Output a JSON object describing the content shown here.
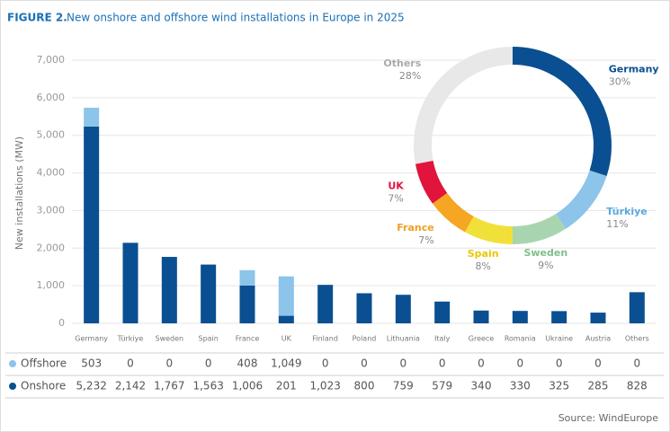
{
  "header": {
    "figure": "FIGURE 2.",
    "title": "New onshore and offshore wind installations in Europe in 2025"
  },
  "chart_data": [
    {
      "type": "bar",
      "stacked": true,
      "y_label": "New installations (MW)",
      "categories": [
        "Germany",
        "Türkiye",
        "Sweden",
        "Spain",
        "France",
        "UK",
        "Finland",
        "Poland",
        "Lithuania",
        "Italy",
        "Greece",
        "Romania",
        "Ukraine",
        "Austria",
        "Others"
      ],
      "series": [
        {
          "name": "Offshore",
          "color": "#8cc4ea",
          "values": [
            503,
            0,
            0,
            0,
            408,
            1049,
            0,
            0,
            0,
            0,
            0,
            0,
            0,
            0,
            0
          ],
          "value_labels": [
            "503",
            "0",
            "0",
            "0",
            "408",
            "1,049",
            "0",
            "0",
            "0",
            "0",
            "0",
            "0",
            "0",
            "0",
            "0"
          ]
        },
        {
          "name": "Onshore",
          "color": "#0a4f91",
          "values": [
            5232,
            2142,
            1767,
            1563,
            1006,
            201,
            1023,
            800,
            759,
            579,
            340,
            330,
            325,
            285,
            828
          ],
          "value_labels": [
            "5,232",
            "2,142",
            "1,767",
            "1,563",
            "1,006",
            "201",
            "1,023",
            "800",
            "759",
            "579",
            "340",
            "330",
            "325",
            "285",
            "828"
          ]
        }
      ],
      "ylim": [
        0,
        7000
      ],
      "yticks": [
        0,
        {
          "value": 1000,
          "label": "1,000"
        },
        {
          "value": 2000,
          "label": "2,000"
        },
        {
          "value": 3000,
          "label": "3,000"
        },
        {
          "value": 4000,
          "label": "4,000"
        },
        {
          "value": 5000,
          "label": "5,000"
        },
        {
          "value": 6000,
          "label": "6,000"
        },
        {
          "value": 7000,
          "label": "7,000"
        }
      ],
      "grid": true
    },
    {
      "type": "donut",
      "categories": [
        "Germany",
        "Türkiye",
        "Sweden",
        "Spain",
        "France",
        "UK",
        "Others"
      ],
      "values": [
        30,
        11,
        9,
        8,
        7,
        7,
        28
      ],
      "value_labels": [
        "30%",
        "11%",
        "9%",
        "8%",
        "7%",
        "7%",
        "28%"
      ],
      "colors": [
        "#0a4f91",
        "#8cc4ea",
        "#a8d5b0",
        "#f2e03a",
        "#f5a623",
        "#e0143c",
        "#e8e8e8"
      ],
      "label_colors": [
        "#0a4f91",
        "#5aa9de",
        "#7fbf8a",
        "#e8c800",
        "#f0a020",
        "#e0143c",
        "#aaaaaa"
      ]
    }
  ],
  "source": "Source: WindEurope"
}
